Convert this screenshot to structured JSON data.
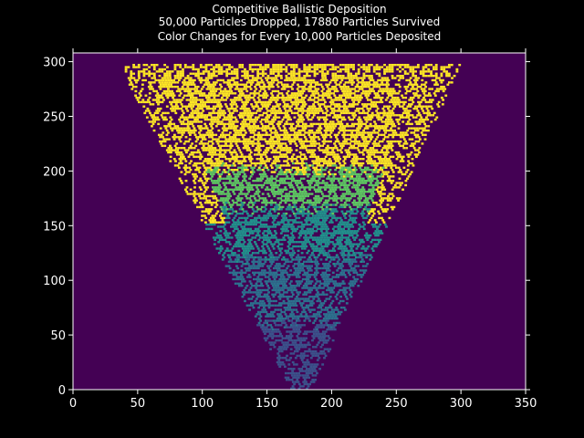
{
  "chart_data": {
    "type": "heatmap",
    "title_lines": [
      "Competitive Ballistic Deposition",
      "50,000 Particles Dropped, 17880 Particles Survived",
      "Color Changes for Every 10,000 Particles Deposited"
    ],
    "xlabel": "",
    "ylabel": "",
    "xlim": [
      0,
      350
    ],
    "ylim": [
      0,
      308
    ],
    "xticks": [
      0,
      50,
      100,
      150,
      200,
      250,
      300,
      350
    ],
    "yticks": [
      0,
      50,
      100,
      150,
      200,
      250,
      300
    ],
    "grid": false,
    "legend": "none",
    "particles_dropped": 50000,
    "particles_survived": 17880,
    "color_step_particles": 10000,
    "colors": {
      "background": "#440154",
      "band_1": "#3b528b",
      "band_2": "#2c728e",
      "band_3": "#21918c",
      "band_4": "#5ec962",
      "band_5": "#fde725",
      "axes": "#ffffff",
      "figure_background": "#000000"
    },
    "bands": [
      {
        "band": 1,
        "y_range": [
          0,
          60
        ],
        "x_range": [
          160,
          190
        ]
      },
      {
        "band": 2,
        "y_range": [
          60,
          120
        ],
        "x_range": [
          115,
          235
        ]
      },
      {
        "band": 3,
        "y_range": [
          120,
          185
        ],
        "x_range": [
          95,
          250
        ]
      },
      {
        "band": 4,
        "y_range": [
          150,
          240
        ],
        "x_range": [
          80,
          270
        ]
      },
      {
        "band": 5,
        "y_range": [
          170,
          298
        ],
        "x_range": [
          40,
          310
        ]
      }
    ]
  }
}
